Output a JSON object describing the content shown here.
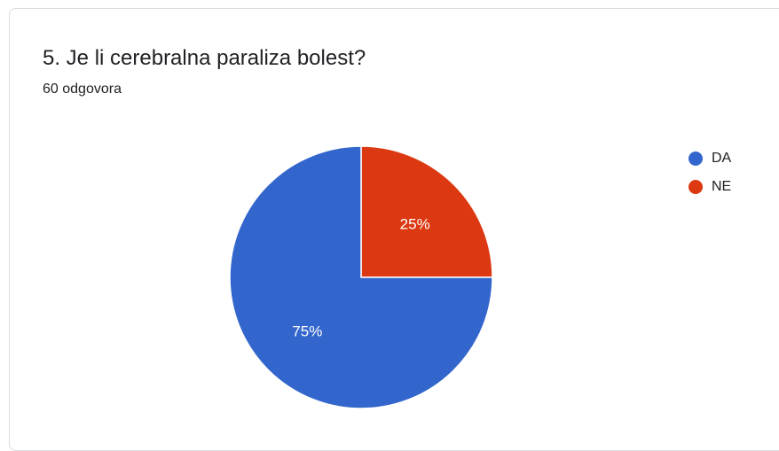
{
  "question": {
    "title": "5.  Je li cerebralna paraliza bolest?",
    "responses": "60 odgovora"
  },
  "chart_data": {
    "type": "pie",
    "categories": [
      "DA",
      "NE"
    ],
    "values": [
      75,
      25
    ],
    "labels": [
      "75%",
      "25%"
    ],
    "colors": [
      "#3366cc",
      "#dc3912"
    ],
    "legend": "right"
  }
}
